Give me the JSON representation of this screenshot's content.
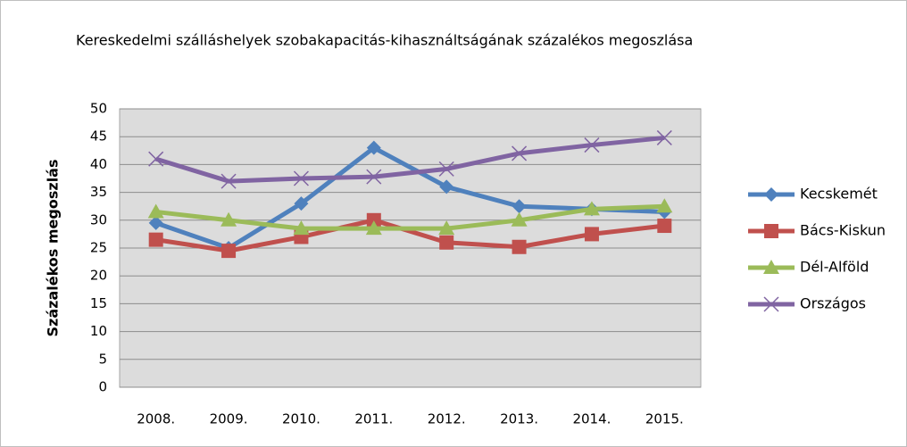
{
  "chart_data": {
    "type": "line",
    "title": "Kereskedelmi szálláshelyek szobakapacitás-kihasználtságának százalékos megoszlása",
    "y_label": "Százalékos megoszlás",
    "categories": [
      "2008.",
      "2009.",
      "2010.",
      "2011.",
      "2012.",
      "2013.",
      "2014.",
      "2015."
    ],
    "series": [
      {
        "name": "Kecskemét",
        "color": "#4f81bd",
        "marker": "diamond",
        "values": [
          29.5,
          25,
          33,
          43,
          36,
          32.5,
          32,
          31.5
        ]
      },
      {
        "name": "Bács-Kiskun",
        "color": "#c0504d",
        "marker": "square",
        "values": [
          26.5,
          24.5,
          27,
          30,
          26,
          25.2,
          27.5,
          29
        ]
      },
      {
        "name": "Dél-Alföld",
        "color": "#9bbb59",
        "marker": "triangle",
        "values": [
          31.5,
          30,
          28.5,
          28.5,
          28.5,
          30,
          32,
          32.5
        ]
      },
      {
        "name": "Országos",
        "color": "#8064a2",
        "marker": "x",
        "values": [
          41,
          37,
          37.5,
          37.8,
          39.2,
          42,
          43.5,
          44.8
        ]
      }
    ],
    "ylim": [
      0,
      50
    ],
    "yticks": [
      0,
      5,
      10,
      15,
      20,
      25,
      30,
      35,
      40,
      45,
      50
    ],
    "grid": true,
    "legend": "right"
  }
}
